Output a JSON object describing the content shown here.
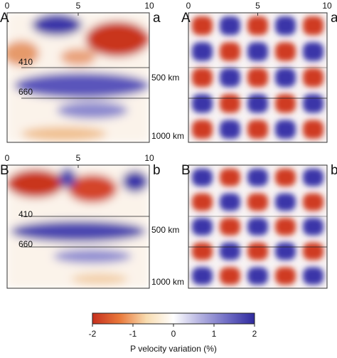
{
  "panels": [
    {
      "label_left": "A",
      "label_right": "a",
      "xlim": [
        0,
        10
      ],
      "xticks": [
        0,
        5,
        10
      ],
      "depth_labels": [
        "410",
        "660"
      ],
      "depth_scale": [
        "500 km",
        "1000 km"
      ]
    },
    {
      "label_left": "A",
      "label_right": "a",
      "xlim": [
        0,
        10
      ],
      "xticks": [
        0,
        5,
        10
      ]
    },
    {
      "label_left": "B",
      "label_right": "b",
      "xlim": [
        0,
        10
      ],
      "xticks": [
        0,
        5,
        10
      ],
      "depth_labels": [
        "410",
        "660"
      ],
      "depth_scale": [
        "500 km",
        "1000 km"
      ]
    },
    {
      "label_left": "B",
      "label_right": "b"
    }
  ],
  "colorbar": {
    "lim": [
      -2,
      2
    ],
    "ticks": [
      -2,
      -1,
      0,
      1,
      2
    ],
    "label": "P velocity variation (%)",
    "colors": [
      "#c62f1e",
      "#e9783a",
      "#f8dcb0",
      "#ffffff",
      "#b3b1e0",
      "#6f6cc4",
      "#2f2a9e"
    ]
  }
}
